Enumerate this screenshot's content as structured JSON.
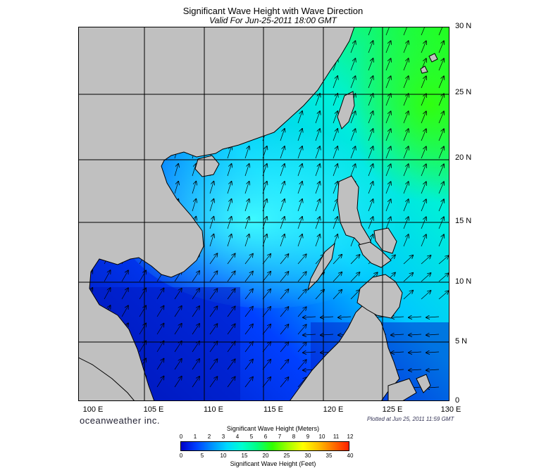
{
  "header": {
    "title": "Significant Wave Height with Wave Direction",
    "subtitle": "Valid For Jun-25-2011 18:00 GMT"
  },
  "map": {
    "lat_labels": [
      "30 N",
      "25 N",
      "20 N",
      "15 N",
      "10 N",
      "5 N",
      "0"
    ],
    "lon_labels": [
      "100 E",
      "105 E",
      "110 E",
      "115 E",
      "120 E",
      "125 E",
      "130 E"
    ],
    "lon_range": [
      99,
      130
    ],
    "lat_range": [
      0,
      30
    ],
    "land_color": "#c0c0c0",
    "coast_color": "#000000"
  },
  "footer": {
    "brand": "oceanweather inc.",
    "plotted": "Plotted at Jun 25, 2011 11:59 GMT"
  },
  "colorbar": {
    "title_meters": "Significant Wave Height (Meters)",
    "title_feet": "Significant Wave Height (Feet)",
    "meter_ticks": [
      "0",
      "1",
      "2",
      "3",
      "4",
      "5",
      "6",
      "7",
      "8",
      "9",
      "10",
      "11",
      "12"
    ],
    "feet_ticks": [
      "0",
      "5",
      "10",
      "15",
      "20",
      "25",
      "30",
      "35",
      "40"
    ],
    "colors": [
      "#0000c8",
      "#0040ff",
      "#0090ff",
      "#00d8ff",
      "#00ffd0",
      "#00ff80",
      "#30ff00",
      "#a0ff00",
      "#ffff00",
      "#ffc000",
      "#ff7000",
      "#ff2000"
    ]
  }
}
